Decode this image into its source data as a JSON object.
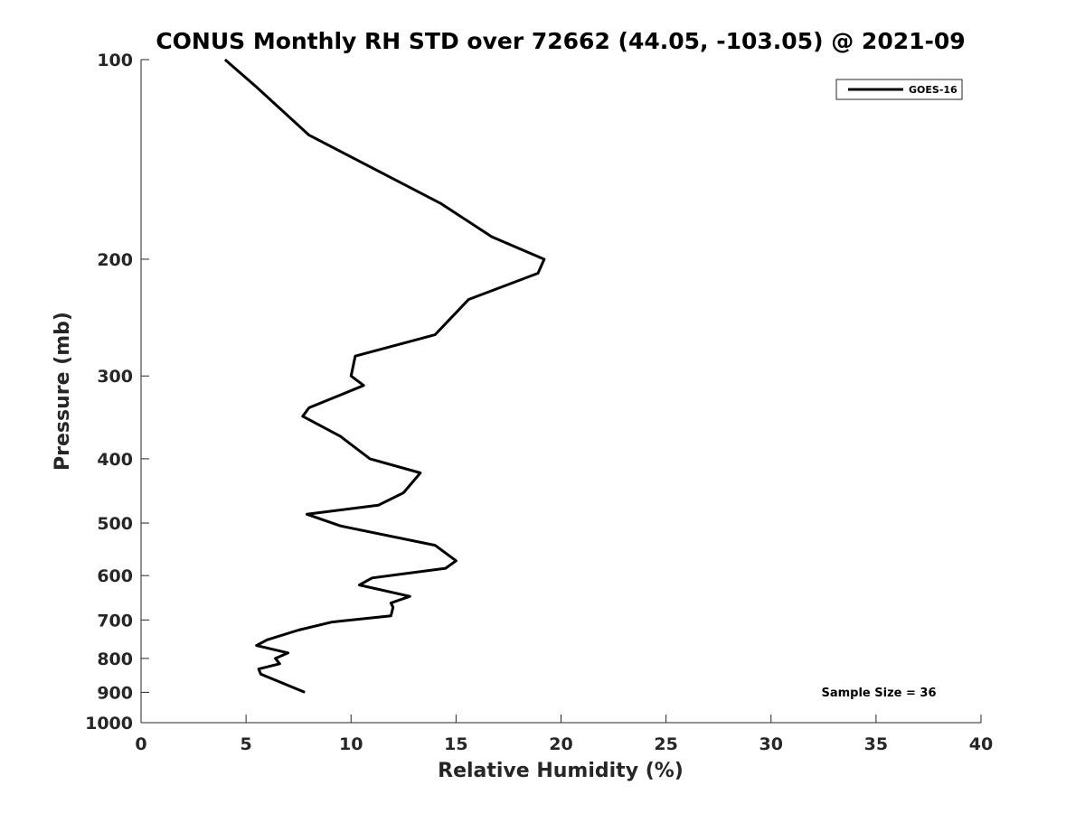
{
  "chart_data": {
    "type": "line",
    "title": "CONUS Monthly RH STD over 72662 (44.05, -103.05) @ 2021-09",
    "xlabel": "Relative Humidity (%)",
    "ylabel": "Pressure (mb)",
    "xlim": [
      0,
      40
    ],
    "ylim": [
      100,
      1000
    ],
    "y_scale": "log",
    "y_reversed": true,
    "x_ticks": [
      "0",
      "5",
      "10",
      "15",
      "20",
      "25",
      "30",
      "35",
      "40"
    ],
    "y_ticks": [
      "100",
      "200",
      "300",
      "400",
      "500",
      "600",
      "700",
      "800",
      "900",
      "1000"
    ],
    "grid": false,
    "legend_position": "top-right",
    "annotation": "Sample Size = 36",
    "series": [
      {
        "name": "GOES-16",
        "color": "#000000",
        "x": [
          4.0,
          5.5,
          8.0,
          14.3,
          16.7,
          19.2,
          18.9,
          15.6,
          14.0,
          10.2,
          10.0,
          10.6,
          8.0,
          7.7,
          9.5,
          10.9,
          13.3,
          12.5,
          11.3,
          7.9,
          9.5,
          14.0,
          15.0,
          14.5,
          11.0,
          10.4,
          12.8,
          11.9,
          12.0,
          11.9,
          9.1,
          7.5,
          6.0,
          5.5,
          7.0,
          6.4,
          6.6,
          5.6,
          5.7,
          7.8
        ],
        "y": [
          100,
          110,
          130,
          165,
          185,
          200,
          210,
          230,
          260,
          280,
          300,
          310,
          335,
          345,
          370,
          400,
          420,
          450,
          470,
          485,
          505,
          540,
          570,
          585,
          605,
          620,
          645,
          660,
          670,
          690,
          705,
          725,
          750,
          765,
          785,
          800,
          815,
          830,
          845,
          900
        ]
      }
    ]
  }
}
